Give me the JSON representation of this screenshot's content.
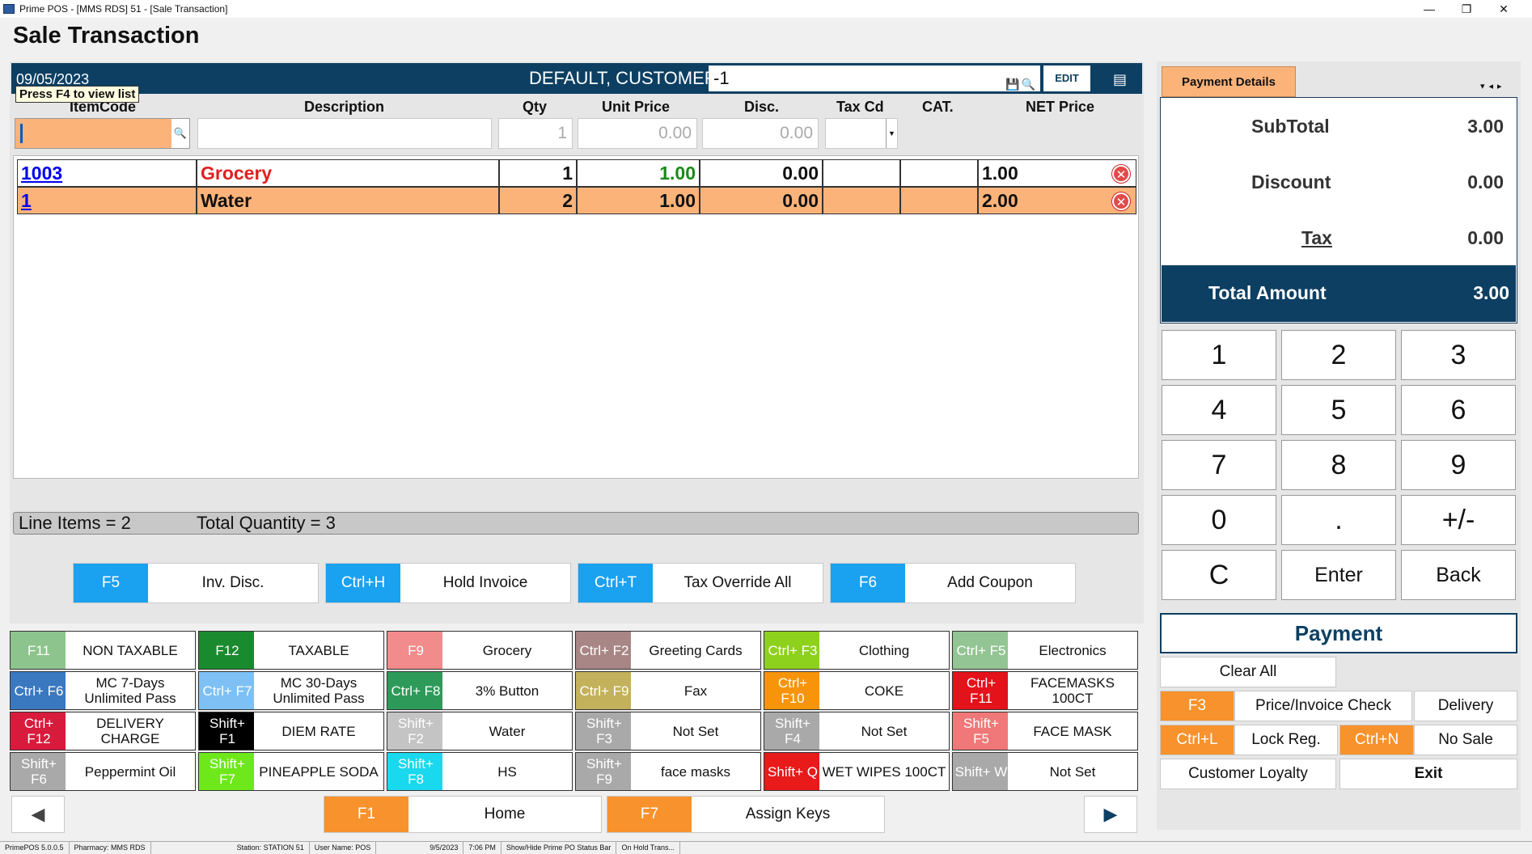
{
  "window": {
    "title": "Prime POS - [MMS RDS] 51 - [Sale Transaction]",
    "controls": [
      "—",
      "❐",
      "✕"
    ]
  },
  "page_title": "Sale Transaction",
  "customer_bar": {
    "date": "09/05/2023",
    "customer": "DEFAULT, CUSTOMER",
    "account_value": "-1",
    "edit_label": "EDIT"
  },
  "tooltip": "Press F4 to view list",
  "columns": {
    "itemcode": "ItemCode",
    "description": "Description",
    "qty": "Qty",
    "unit_price": "Unit Price",
    "disc": "Disc.",
    "tax_cd": "Tax Cd",
    "cat": "CAT.",
    "net_price": "NET Price"
  },
  "entry": {
    "qty": "1",
    "unit_price": "0.00",
    "disc": "0.00"
  },
  "rows": [
    {
      "code": "1003",
      "description": "Grocery",
      "qty": "1",
      "unit_price": "1.00",
      "disc": "0.00",
      "tax_cd": "",
      "cat": "",
      "net": "1.00"
    },
    {
      "code": "1",
      "description": "Water",
      "qty": "2",
      "unit_price": "1.00",
      "disc": "0.00",
      "tax_cd": "",
      "cat": "",
      "net": "2.00"
    }
  ],
  "summary": {
    "line_items": "Line Items = 2",
    "total_qty": "Total Quantity = 3"
  },
  "actions": [
    {
      "key": "F5",
      "label": "Inv. Disc."
    },
    {
      "key": "Ctrl+H",
      "label": "Hold Invoice"
    },
    {
      "key": "Ctrl+T",
      "label": "Tax Override All"
    },
    {
      "key": "F6",
      "label": "Add Coupon"
    }
  ],
  "hotkeys": [
    {
      "key": "F11",
      "label": "NON TAXABLE",
      "color": "#8dc48d"
    },
    {
      "key": "F12",
      "label": "TAXABLE",
      "color": "#1a8a2e"
    },
    {
      "key": "F9",
      "label": "Grocery",
      "color": "#f28b8b"
    },
    {
      "key": "Ctrl+ F2",
      "label": "Greeting Cards",
      "color": "#a88686"
    },
    {
      "key": "Ctrl+ F3",
      "label": "Clothing",
      "color": "#8ed11c"
    },
    {
      "key": "Ctrl+ F5",
      "label": "Electronics",
      "color": "#93c493"
    },
    {
      "key": "Ctrl+ F6",
      "label": "MC 7-Days Unlimited Pass",
      "color": "#3a78c0"
    },
    {
      "key": "Ctrl+ F7",
      "label": "MC 30-Days Unlimited Pass",
      "color": "#7ec0f4"
    },
    {
      "key": "Ctrl+ F8",
      "label": "3% Button",
      "color": "#2e9a5a"
    },
    {
      "key": "Ctrl+ F9",
      "label": "Fax",
      "color": "#c4b15c"
    },
    {
      "key": "Ctrl+ F10",
      "label": "COKE",
      "color": "#f7940a"
    },
    {
      "key": "Ctrl+ F11",
      "label": "FACEMASKS 100CT",
      "color": "#e3121b"
    },
    {
      "key": "Ctrl+ F12",
      "label": "DELIVERY CHARGE",
      "color": "#d81b3c"
    },
    {
      "key": "Shift+ F1",
      "label": "DIEM RATE",
      "color": "#000000"
    },
    {
      "key": "Shift+ F2",
      "label": "Water",
      "color": "#c4c4c4"
    },
    {
      "key": "Shift+ F3",
      "label": "Not Set",
      "color": "#a9a9a9"
    },
    {
      "key": "Shift+ F4",
      "label": "Not Set",
      "color": "#a9a9a9"
    },
    {
      "key": "Shift+ F5",
      "label": "FACE MASK",
      "color": "#f07878"
    },
    {
      "key": "Shift+ F6",
      "label": "Peppermint Oil",
      "color": "#a9a9a9"
    },
    {
      "key": "Shift+ F7",
      "label": "PINEAPPLE SODA",
      "color": "#6ee81a"
    },
    {
      "key": "Shift+ F8",
      "label": "HS",
      "color": "#1ad8ee"
    },
    {
      "key": "Shift+ F9",
      "label": "face masks",
      "color": "#a9a9a9"
    },
    {
      "key": "Shift+ Q",
      "label": "WET WIPES 100CT",
      "color": "#e81a1a"
    },
    {
      "key": "Shift+ W",
      "label": "Not Set",
      "color": "#a9a9a9"
    }
  ],
  "nav": {
    "home": {
      "key": "F1",
      "label": "Home"
    },
    "assign": {
      "key": "F7",
      "label": "Assign Keys"
    },
    "prev_arrow": "◀",
    "next_arrow": "▶"
  },
  "payment_details": {
    "tab_label": "Payment Details",
    "subtotal_label": "SubTotal",
    "subtotal": "3.00",
    "discount_label": "Discount",
    "discount": "0.00",
    "tax_label": "Tax",
    "tax": "0.00",
    "total_label": "Total Amount",
    "total": "3.00"
  },
  "keypad": [
    "1",
    "2",
    "3",
    "4",
    "5",
    "6",
    "7",
    "8",
    "9",
    "0",
    ".",
    "+/-",
    "C",
    "Enter",
    "Back"
  ],
  "payment_label": "Payment",
  "right_buttons": {
    "clear_all": "Clear All",
    "price_check_key": "F3",
    "price_check": "Price/Invoice Check",
    "delivery": "Delivery",
    "lock_key": "Ctrl+L",
    "lock": "Lock Reg.",
    "nosale_key": "Ctrl+N",
    "nosale": "No Sale",
    "loyalty": "Customer Loyalty",
    "exit": "Exit"
  },
  "statusbar": [
    "PrimePOS 5.0.0.5",
    "Pharmacy: MMS RDS",
    "Station: STATION 51",
    "User Name: POS",
    "9/5/2023",
    "7:06 PM",
    "Show/Hide Prime PO Status Bar",
    "On Hold Trans..."
  ]
}
